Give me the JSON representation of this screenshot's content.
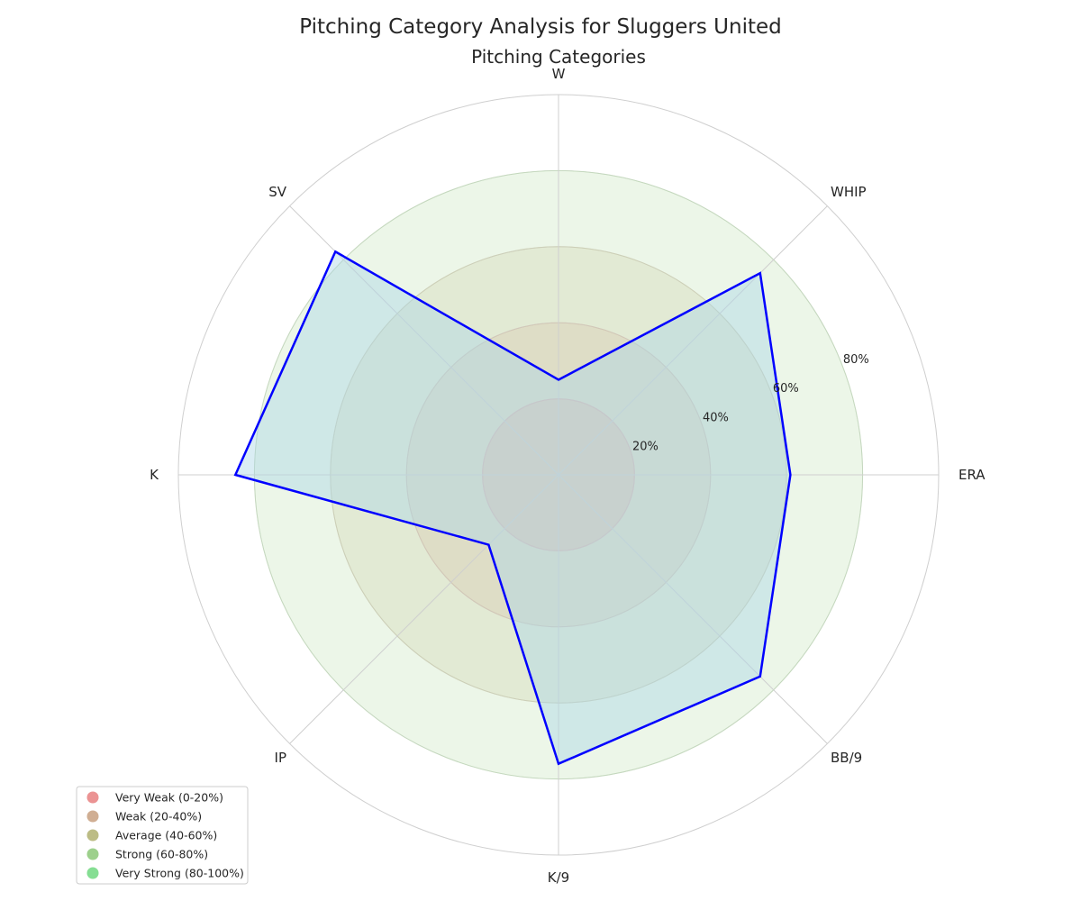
{
  "chart_data": {
    "type": "radar",
    "title": "Pitching Category Analysis for Sluggers United",
    "subtitle": "Pitching Categories",
    "categories": [
      "W",
      "WHIP",
      "ERA",
      "BB/9",
      "K/9",
      "IP",
      "K",
      "SV"
    ],
    "series": [
      {
        "values": [
          25,
          75,
          61,
          75,
          76,
          26,
          85,
          83
        ],
        "color": "#0000ff",
        "fill_color": "#add8e6"
      }
    ],
    "rlim": [
      0,
      100
    ],
    "tick_labels": [
      "20%",
      "40%",
      "60%",
      "80%"
    ],
    "tick_values": [
      20,
      40,
      60,
      80
    ],
    "grid": true,
    "bands": [
      {
        "label": "Very Weak (0-20%)",
        "range": [
          0,
          20
        ],
        "color": "#e88080"
      },
      {
        "label": "Weak (20-40%)",
        "range": [
          20,
          40
        ],
        "color": "#c8a080"
      },
      {
        "label": "Average (40-60%)",
        "range": [
          40,
          60
        ],
        "color": "#b0b070"
      },
      {
        "label": "Strong (60-80%)",
        "range": [
          60,
          80
        ],
        "color": "#8cc878"
      },
      {
        "label": "Very Strong (80-100%)",
        "range": [
          80,
          100
        ],
        "color": "#70d880"
      }
    ],
    "legend_position": "lower-left"
  }
}
